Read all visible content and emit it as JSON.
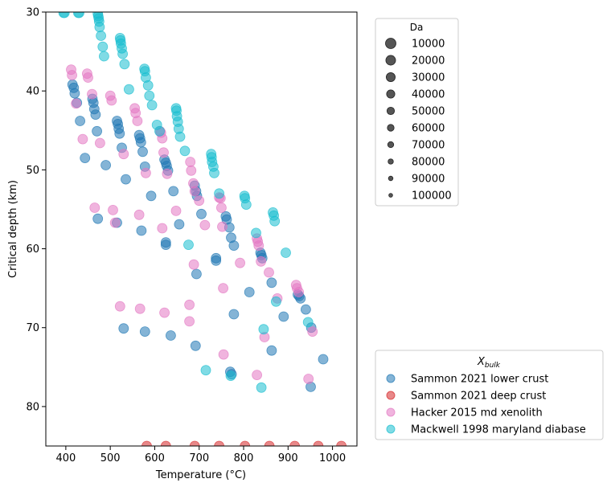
{
  "chart_data": {
    "type": "scatter",
    "title": "",
    "xlabel": "Temperature (°C)",
    "ylabel": "Critical depth (km)",
    "xlim": [
      355,
      1055
    ],
    "ylim": [
      85,
      30
    ],
    "y_inverted": true,
    "grid": false,
    "x_ticks": [
      400,
      500,
      600,
      700,
      800,
      900,
      1000
    ],
    "y_ticks": [
      30,
      40,
      50,
      60,
      70,
      80
    ],
    "size_legend": {
      "title": "Da",
      "placement": "upper-right-outside",
      "entries": [
        "10000",
        "20000",
        "30000",
        "40000",
        "50000",
        "60000",
        "70000",
        "80000",
        "90000",
        "100000"
      ]
    },
    "color_legend": {
      "title": "X",
      "title_subscript": "bulk",
      "placement": "lower-right-outside"
    },
    "series": [
      {
        "name": "Sammon 2021 lower crust",
        "color": "#1f77b4",
        "points": [
          [
            415,
            39.2
          ],
          [
            418,
            39.6
          ],
          [
            420,
            40.3
          ],
          [
            425,
            41.5
          ],
          [
            432,
            43.8
          ],
          [
            443,
            48.5
          ],
          [
            460,
            41.0
          ],
          [
            462,
            41.5
          ],
          [
            464,
            42.3
          ],
          [
            467,
            43.0
          ],
          [
            470,
            45.1
          ],
          [
            472,
            56.2
          ],
          [
            490,
            49.4
          ],
          [
            515,
            43.8
          ],
          [
            517,
            44.2
          ],
          [
            519,
            44.8
          ],
          [
            521,
            45.4
          ],
          [
            526,
            47.2
          ],
          [
            535,
            51.2
          ],
          [
            515,
            56.7
          ],
          [
            565,
            45.6
          ],
          [
            567,
            46.0
          ],
          [
            569,
            46.5
          ],
          [
            573,
            47.7
          ],
          [
            578,
            49.6
          ],
          [
            592,
            53.3
          ],
          [
            570,
            57.7
          ],
          [
            530,
            70.1
          ],
          [
            578,
            70.5
          ],
          [
            622,
            48.7
          ],
          [
            625,
            49.1
          ],
          [
            627,
            49.5
          ],
          [
            630,
            50.1
          ],
          [
            642,
            52.7
          ],
          [
            655,
            56.9
          ],
          [
            625,
            59.2
          ],
          [
            625,
            59.5
          ],
          [
            636,
            71.0
          ],
          [
            690,
            52.0
          ],
          [
            693,
            52.7
          ],
          [
            695,
            53.3
          ],
          [
            705,
            55.6
          ],
          [
            694,
            63.2
          ],
          [
            692,
            72.3
          ],
          [
            760,
            55.9
          ],
          [
            762,
            56.3
          ],
          [
            768,
            57.3
          ],
          [
            772,
            58.6
          ],
          [
            778,
            59.6
          ],
          [
            738,
            61.2
          ],
          [
            738,
            61.5
          ],
          [
            778,
            68.3
          ],
          [
            770,
            75.6
          ],
          [
            773,
            75.9
          ],
          [
            838,
            60.5
          ],
          [
            840,
            60.8
          ],
          [
            842,
            61.2
          ],
          [
            813,
            65.5
          ],
          [
            863,
            64.3
          ],
          [
            890,
            68.6
          ],
          [
            863,
            72.9
          ],
          [
            922,
            65.8
          ],
          [
            925,
            66.0
          ],
          [
            928,
            66.3
          ],
          [
            940,
            67.7
          ],
          [
            952,
            70.0
          ],
          [
            951,
            77.5
          ],
          [
            979,
            74.0
          ]
        ]
      },
      {
        "name": "Sammon 2021 deep crust",
        "color": "#d62728",
        "points": [
          [
            582,
            85
          ],
          [
            625,
            85
          ],
          [
            690,
            85
          ],
          [
            745,
            85
          ],
          [
            803,
            85
          ],
          [
            858,
            85
          ],
          [
            915,
            85
          ],
          [
            968,
            85
          ],
          [
            1020,
            85
          ]
        ]
      },
      {
        "name": "Hacker 2015 md xenolith",
        "color": "#e377c2",
        "points": [
          [
            412,
            37.3
          ],
          [
            414,
            38.0
          ],
          [
            423,
            41.6
          ],
          [
            438,
            46.1
          ],
          [
            448,
            37.8
          ],
          [
            450,
            38.3
          ],
          [
            459,
            40.4
          ],
          [
            465,
            54.8
          ],
          [
            477,
            46.6
          ],
          [
            500,
            40.6
          ],
          [
            503,
            41.2
          ],
          [
            506,
            55.1
          ],
          [
            511,
            56.7
          ],
          [
            530,
            48.0
          ],
          [
            522,
            67.3
          ],
          [
            555,
            42.2
          ],
          [
            557,
            42.8
          ],
          [
            561,
            43.8
          ],
          [
            565,
            55.7
          ],
          [
            567,
            67.6
          ],
          [
            580,
            50.4
          ],
          [
            612,
            45.1
          ],
          [
            614,
            45.3
          ],
          [
            617,
            46.0
          ],
          [
            620,
            47.8
          ],
          [
            628,
            50.5
          ],
          [
            617,
            57.4
          ],
          [
            622,
            68.1
          ],
          [
            648,
            55.2
          ],
          [
            678,
            67.1
          ],
          [
            680,
            49.0
          ],
          [
            682,
            50.1
          ],
          [
            687,
            51.7
          ],
          [
            690,
            52.7
          ],
          [
            688,
            62.0
          ],
          [
            700,
            53.9
          ],
          [
            713,
            57.0
          ],
          [
            678,
            69.2
          ],
          [
            745,
            53.5
          ],
          [
            748,
            53.6
          ],
          [
            750,
            54.8
          ],
          [
            752,
            57.2
          ],
          [
            754,
            65.0
          ],
          [
            755,
            73.4
          ],
          [
            792,
            61.8
          ],
          [
            830,
            58.7
          ],
          [
            832,
            59.1
          ],
          [
            834,
            59.6
          ],
          [
            839,
            61.6
          ],
          [
            857,
            63.0
          ],
          [
            847,
            71.2
          ],
          [
            830,
            76.0
          ],
          [
            918,
            64.6
          ],
          [
            920,
            65.0
          ],
          [
            924,
            65.5
          ],
          [
            876,
            66.3
          ],
          [
            946,
            76.5
          ],
          [
            955,
            70.5
          ]
        ]
      },
      {
        "name": "Mackwell 1998 maryland diabase",
        "color": "#17becf",
        "points": [
          [
            395,
            30.1
          ],
          [
            397,
            30.1
          ],
          [
            428,
            30.1
          ],
          [
            430,
            30.1
          ],
          [
            472,
            30.2
          ],
          [
            473,
            30.5
          ],
          [
            474,
            30.8
          ],
          [
            475,
            31.2
          ],
          [
            476,
            31.9
          ],
          [
            479,
            33.0
          ],
          [
            483,
            34.4
          ],
          [
            486,
            35.6
          ],
          [
            522,
            33.3
          ],
          [
            523,
            33.6
          ],
          [
            524,
            34.0
          ],
          [
            526,
            34.6
          ],
          [
            528,
            35.3
          ],
          [
            532,
            36.6
          ],
          [
            542,
            39.8
          ],
          [
            577,
            37.2
          ],
          [
            578,
            37.5
          ],
          [
            580,
            38.3
          ],
          [
            585,
            39.3
          ],
          [
            588,
            40.6
          ],
          [
            594,
            41.8
          ],
          [
            605,
            44.3
          ],
          [
            611,
            45.1
          ],
          [
            648,
            42.2
          ],
          [
            649,
            42.5
          ],
          [
            650,
            43.2
          ],
          [
            652,
            43.9
          ],
          [
            654,
            44.8
          ],
          [
            657,
            45.8
          ],
          [
            668,
            47.6
          ],
          [
            676,
            59.5
          ],
          [
            727,
            48.0
          ],
          [
            728,
            48.4
          ],
          [
            729,
            49.0
          ],
          [
            732,
            49.6
          ],
          [
            734,
            50.4
          ],
          [
            745,
            53.0
          ],
          [
            715,
            75.4
          ],
          [
            771,
            76.1
          ],
          [
            802,
            53.3
          ],
          [
            803,
            53.6
          ],
          [
            806,
            54.4
          ],
          [
            828,
            58.0
          ],
          [
            840,
            77.6
          ],
          [
            845,
            70.2
          ],
          [
            866,
            55.4
          ],
          [
            868,
            55.8
          ],
          [
            870,
            56.5
          ],
          [
            873,
            66.7
          ],
          [
            895,
            60.5
          ],
          [
            945,
            69.3
          ]
        ]
      }
    ]
  }
}
